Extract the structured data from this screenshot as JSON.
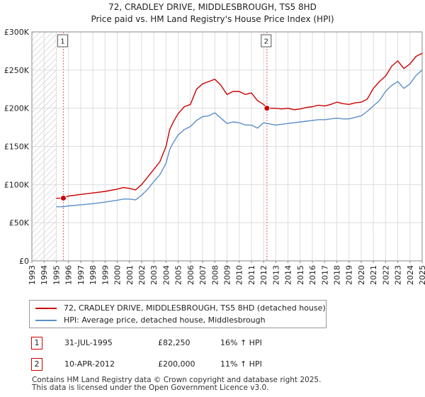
{
  "chart_data": {
    "type": "line",
    "title": "72, CRADLEY DRIVE, MIDDLESBROUGH, TS5 8HD",
    "subtitle": "Price paid vs. HM Land Registry's House Price Index (HPI)",
    "xlabel": "",
    "ylabel": "",
    "xlim": [
      1993.0,
      2025.0
    ],
    "ylim": [
      0,
      300000
    ],
    "x_ticks": [
      "1993",
      "1994",
      "1995",
      "1996",
      "1997",
      "1998",
      "1999",
      "2000",
      "2001",
      "2002",
      "2003",
      "2004",
      "2005",
      "2006",
      "2007",
      "2008",
      "2009",
      "2010",
      "2011",
      "2012",
      "2013",
      "2014",
      "2015",
      "2016",
      "2017",
      "2018",
      "2019",
      "2020",
      "2021",
      "2022",
      "2023",
      "2024",
      "2025"
    ],
    "y_ticks": [
      {
        "value": 0,
        "label": "£0"
      },
      {
        "value": 50000,
        "label": "£50K"
      },
      {
        "value": 100000,
        "label": "£100K"
      },
      {
        "value": 150000,
        "label": "£150K"
      },
      {
        "value": 200000,
        "label": "£200K"
      },
      {
        "value": 250000,
        "label": "£250K"
      },
      {
        "value": 300000,
        "label": "£300K"
      }
    ],
    "grid": true,
    "hatched_before": 1995.0,
    "series": [
      {
        "name": "72, CRADLEY DRIVE, MIDDLESBROUGH, TS5 8HD (detached house)",
        "color": "#cc0000",
        "x": [
          1995.0,
          1995.58,
          1996.0,
          1997.0,
          1998.0,
          1999.0,
          2000.0,
          2000.5,
          2001.0,
          2001.5,
          2002.0,
          2002.5,
          2003.0,
          2003.5,
          2004.0,
          2004.3,
          2004.6,
          2005.0,
          2005.5,
          2006.0,
          2006.5,
          2007.0,
          2007.5,
          2008.0,
          2008.5,
          2009.0,
          2009.5,
          2010.0,
          2010.5,
          2011.0,
          2011.5,
          2012.0,
          2012.27,
          2013.0,
          2013.5,
          2014.0,
          2014.5,
          2015.0,
          2015.5,
          2016.0,
          2016.5,
          2017.0,
          2017.5,
          2018.0,
          2018.5,
          2019.0,
          2019.5,
          2020.0,
          2020.5,
          2021.0,
          2021.5,
          2022.0,
          2022.5,
          2023.0,
          2023.5,
          2024.0,
          2024.5,
          2025.0
        ],
        "y": [
          82000,
          82250,
          85000,
          87000,
          89000,
          91000,
          94000,
          96000,
          95000,
          93000,
          100000,
          110000,
          120000,
          130000,
          150000,
          172000,
          182000,
          193000,
          202000,
          205000,
          225000,
          232000,
          235000,
          238000,
          230000,
          218000,
          222000,
          222000,
          218000,
          220000,
          210000,
          205000,
          200000,
          200000,
          199000,
          200000,
          198000,
          199000,
          201000,
          202000,
          204000,
          203000,
          205000,
          208000,
          206000,
          205000,
          207000,
          208000,
          212000,
          226000,
          235000,
          242000,
          255000,
          262000,
          252000,
          258000,
          268000,
          272000
        ]
      },
      {
        "name": "HPI: Average price, detached house, Middlesbrough",
        "color": "#5b8fc9",
        "x": [
          1995.0,
          1995.58,
          1996.0,
          1997.0,
          1998.0,
          1999.0,
          2000.0,
          2000.5,
          2001.0,
          2001.5,
          2002.0,
          2002.5,
          2003.0,
          2003.5,
          2004.0,
          2004.3,
          2004.6,
          2005.0,
          2005.5,
          2006.0,
          2006.5,
          2007.0,
          2007.5,
          2008.0,
          2008.5,
          2009.0,
          2009.5,
          2010.0,
          2010.5,
          2011.0,
          2011.5,
          2012.0,
          2012.27,
          2013.0,
          2013.5,
          2014.0,
          2014.5,
          2015.0,
          2015.5,
          2016.0,
          2016.5,
          2017.0,
          2017.5,
          2018.0,
          2018.5,
          2019.0,
          2019.5,
          2020.0,
          2020.5,
          2021.0,
          2021.5,
          2022.0,
          2022.5,
          2023.0,
          2023.5,
          2024.0,
          2024.5,
          2025.0
        ],
        "y": [
          71000,
          70900,
          72000,
          73500,
          75000,
          77000,
          79500,
          81000,
          81000,
          80000,
          86000,
          94000,
          104000,
          113000,
          128000,
          146000,
          155000,
          165000,
          172000,
          176000,
          184000,
          189000,
          190000,
          194000,
          187000,
          180000,
          182000,
          181000,
          178000,
          178000,
          174000,
          181000,
          180000,
          178000,
          179000,
          180000,
          181000,
          182000,
          183000,
          184000,
          185000,
          185000,
          186000,
          187000,
          186000,
          186000,
          188000,
          190000,
          196000,
          203000,
          210000,
          222000,
          230000,
          235000,
          226000,
          232000,
          243000,
          250000
        ]
      }
    ],
    "markers": [
      {
        "label": "1",
        "x": 1995.58,
        "y": 82250
      },
      {
        "label": "2",
        "x": 2012.27,
        "y": 200000
      }
    ]
  },
  "legend": {
    "items": [
      {
        "label": "72, CRADLEY DRIVE, MIDDLESBROUGH, TS5 8HD (detached house)",
        "color": "#cc0000"
      },
      {
        "label": "HPI: Average price, detached house, Middlesbrough",
        "color": "#5b8fc9"
      }
    ]
  },
  "sales": [
    {
      "num": "1",
      "date": "31-JUL-1995",
      "price": "£82,250",
      "hpi": "16% ↑ HPI"
    },
    {
      "num": "2",
      "date": "10-APR-2012",
      "price": "£200,000",
      "hpi": "11% ↑ HPI"
    }
  ],
  "footer": {
    "line1": "Contains HM Land Registry data © Crown copyright and database right 2025.",
    "line2": "This data is licensed under the Open Government Licence v3.0."
  }
}
